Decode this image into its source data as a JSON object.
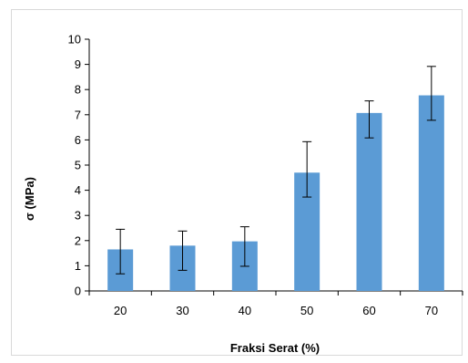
{
  "chart_data": {
    "type": "bar",
    "categories": [
      "20",
      "30",
      "40",
      "50",
      "60",
      "70"
    ],
    "values": [
      1.65,
      1.8,
      1.97,
      4.7,
      7.07,
      7.77
    ],
    "error_low": [
      0.68,
      0.82,
      0.98,
      3.73,
      6.08,
      6.78
    ],
    "error_high": [
      2.45,
      2.38,
      2.55,
      5.93,
      7.55,
      8.92
    ],
    "xlabel": "Fraksi Serat (%)",
    "ylabel": "σ (MPa)",
    "ylim": [
      0,
      10
    ],
    "yticks": [
      "0",
      "1",
      "2",
      "3",
      "4",
      "5",
      "6",
      "7",
      "8",
      "9",
      "10"
    ],
    "bar_color": "#5b9bd5",
    "grid": false
  }
}
